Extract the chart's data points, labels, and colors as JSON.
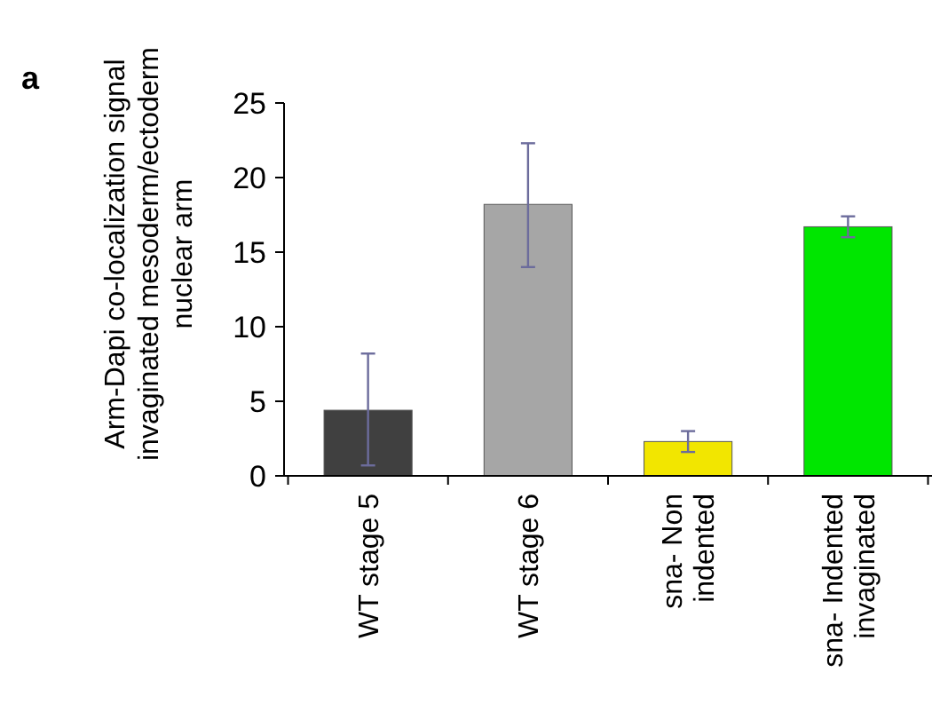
{
  "chart_data": {
    "type": "bar",
    "ylabel": "Arm-Dapi co-localization signal\ninvaginated mesoderm/ectoderm\nnuclear arm",
    "categories": [
      "WT stage 5",
      "WT stage 6",
      "sna- Non\nindented",
      "sna- Indented\ninvaginated"
    ],
    "values": [
      4.4,
      18.2,
      2.3,
      16.7
    ],
    "colors": [
      "#404040",
      "#a6a6a6",
      "#f2e600",
      "#00e600"
    ],
    "errors": [
      [
        0.7,
        8.2
      ],
      [
        14,
        22.3
      ],
      [
        1.6,
        3.0
      ],
      [
        16.0,
        17.4
      ]
    ],
    "ylim": [
      0,
      25
    ],
    "yticks": [
      0,
      5,
      10,
      15,
      20,
      25
    ],
    "grid": false,
    "annotations": [
      "a"
    ]
  }
}
